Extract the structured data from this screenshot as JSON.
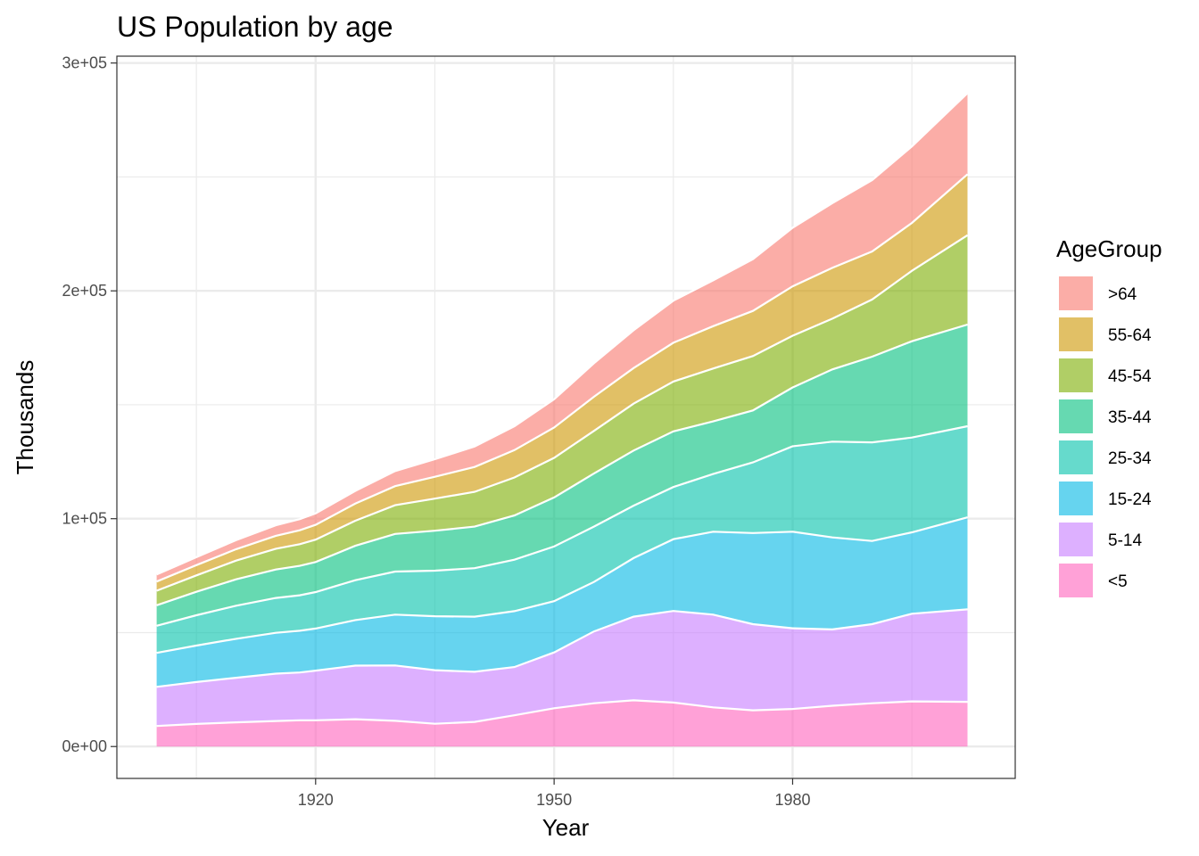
{
  "chart_data": {
    "type": "area",
    "stacked": true,
    "title": "US Population by age",
    "xlabel": "Year",
    "ylabel": "Thousands",
    "x_ticks": [
      1920,
      1950,
      1980
    ],
    "y_ticks": [
      0,
      100000,
      200000,
      300000
    ],
    "y_tick_labels": [
      "0e+00",
      "1e+05",
      "2e+05",
      "3e+05"
    ],
    "xlim": [
      1895,
      2008
    ],
    "ylim": [
      -14000,
      303000
    ],
    "grid": true,
    "legend_position": "right",
    "legend_title": "AgeGroup",
    "x": [
      1900,
      1905,
      1910,
      1915,
      1918,
      1920,
      1925,
      1930,
      1935,
      1940,
      1945,
      1950,
      1955,
      1960,
      1965,
      1970,
      1975,
      1980,
      1985,
      1990,
      1995,
      2002
    ],
    "series": [
      {
        "name": "<5",
        "color": "#FF62BC",
        "values": [
          9000,
          9900,
          10600,
          11200,
          11500,
          11500,
          12000,
          11300,
          10000,
          10800,
          13700,
          16800,
          19000,
          20300,
          19300,
          17200,
          15900,
          16500,
          17900,
          19000,
          19800,
          19600
        ]
      },
      {
        "name": "5-14",
        "color": "#C77CFF",
        "values": [
          17200,
          18400,
          19600,
          20800,
          21000,
          21800,
          23500,
          24300,
          23500,
          22000,
          21200,
          24500,
          31500,
          36700,
          40200,
          40700,
          37800,
          35400,
          33500,
          34700,
          38500,
          40600
        ]
      },
      {
        "name": "15-24",
        "color": "#00B8E5",
        "values": [
          14900,
          16000,
          17100,
          17900,
          18300,
          18500,
          20000,
          22300,
          23700,
          24200,
          24500,
          22500,
          21700,
          25700,
          31500,
          36400,
          40000,
          42400,
          40400,
          36500,
          35700,
          40400
        ]
      },
      {
        "name": "25-34",
        "color": "#00C1AA",
        "values": [
          11900,
          13300,
          14500,
          15300,
          15600,
          16000,
          17500,
          18900,
          20000,
          21300,
          22600,
          24000,
          24300,
          23000,
          22900,
          25300,
          31000,
          37500,
          42000,
          43300,
          41600,
          40000
        ]
      },
      {
        "name": "35-44",
        "color": "#00BF7D",
        "values": [
          9000,
          10300,
          11600,
          12500,
          12900,
          13200,
          15100,
          16500,
          17500,
          18200,
          19400,
          21500,
          23300,
          24200,
          24400,
          23100,
          22800,
          25800,
          31700,
          37600,
          42300,
          44600
        ]
      },
      {
        "name": "45-54",
        "color": "#7CAE00",
        "values": [
          6400,
          7200,
          8200,
          9100,
          9500,
          9800,
          11000,
          12600,
          14100,
          15300,
          16700,
          17400,
          18700,
          20600,
          21900,
          23200,
          23900,
          22700,
          22300,
          25100,
          30900,
          39200
        ]
      },
      {
        "name": "55-64",
        "color": "#CD9600",
        "values": [
          4000,
          4500,
          5000,
          5700,
          6100,
          6500,
          7500,
          8400,
          9600,
          10900,
          12000,
          13300,
          15000,
          15600,
          17000,
          18600,
          19800,
          21700,
          22300,
          21100,
          21000,
          26800
        ]
      },
      {
        "name": ">64",
        "color": "#F8766D",
        "values": [
          3100,
          3500,
          4000,
          4600,
          4900,
          5000,
          5600,
          6600,
          7700,
          9000,
          10500,
          12400,
          14700,
          16600,
          18500,
          20100,
          22700,
          25700,
          28400,
          31300,
          33600,
          35600
        ]
      }
    ]
  }
}
